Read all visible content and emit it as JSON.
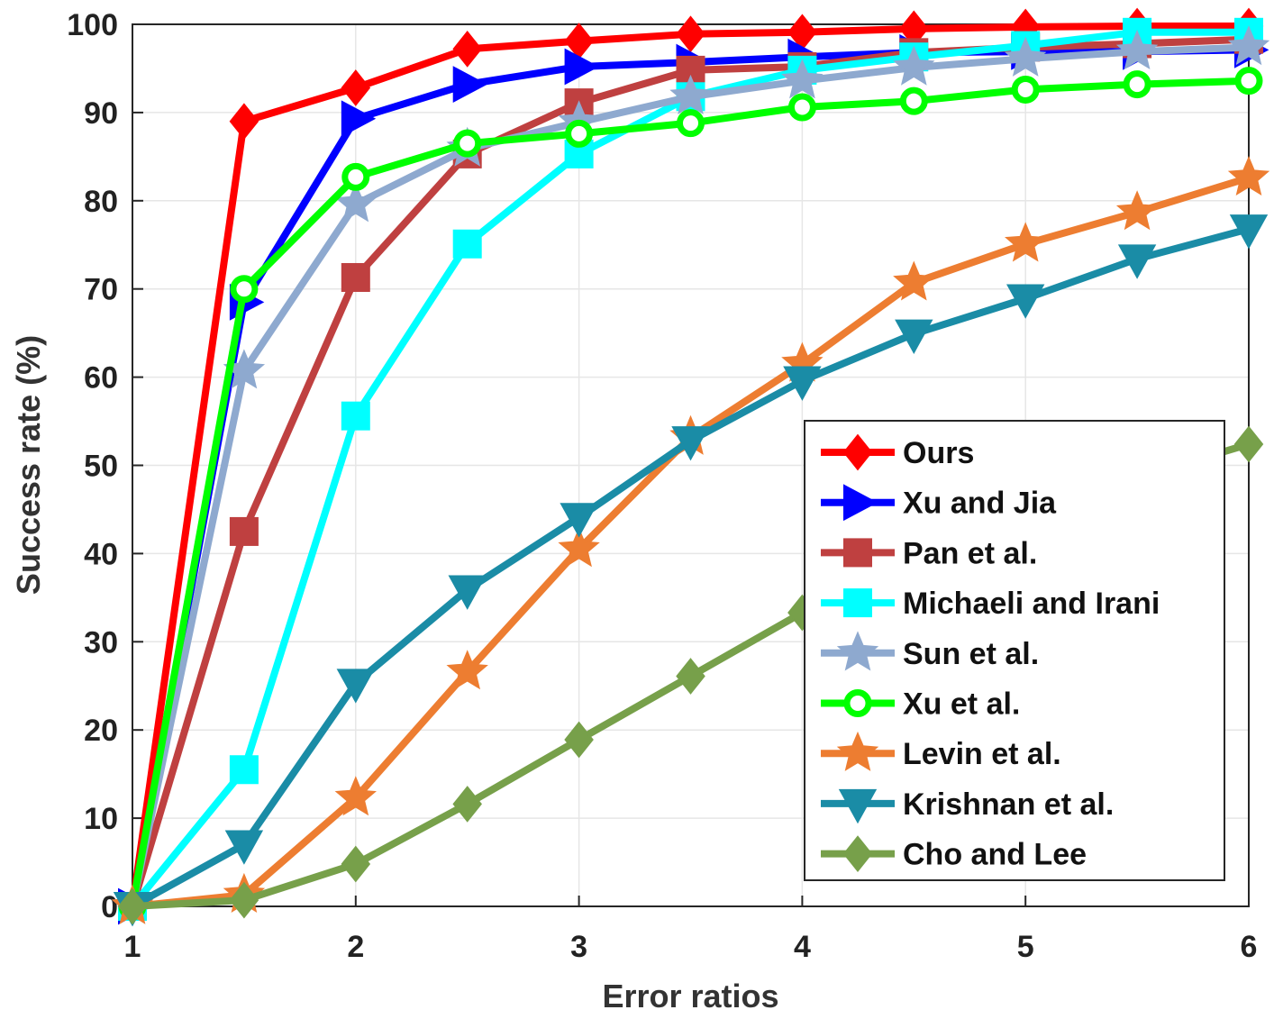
{
  "chart_data": {
    "type": "line",
    "title": "",
    "xlabel": "Error ratios",
    "ylabel": "Success rate (%)",
    "xlim": [
      1,
      6
    ],
    "ylim": [
      0,
      100
    ],
    "xticks": [
      1,
      2,
      3,
      4,
      5,
      6
    ],
    "yticks": [
      0,
      10,
      20,
      30,
      40,
      50,
      60,
      70,
      80,
      90,
      100
    ],
    "grid": true,
    "legend_position": "bottom-right",
    "x": [
      1,
      1.5,
      2,
      2.5,
      3,
      3.5,
      4,
      4.5,
      5,
      5.5,
      6
    ],
    "series": [
      {
        "name": "Ours",
        "color": "#ff0000",
        "marker": "diamond",
        "values": [
          0,
          89,
          92.8,
          97.2,
          98.1,
          98.9,
          99.1,
          99.5,
          99.7,
          99.8,
          99.8
        ]
      },
      {
        "name": "Xu and Jia",
        "color": "#0000ff",
        "marker": "triangle-right",
        "values": [
          0,
          68.5,
          89.3,
          93.2,
          95.2,
          95.7,
          96.3,
          96.8,
          96.9,
          96.9,
          97.1
        ]
      },
      {
        "name": "Pan et al.",
        "color": "#bf4040",
        "marker": "square",
        "values": [
          0,
          42.5,
          71.3,
          85.3,
          91.1,
          94.8,
          95.2,
          96.8,
          97.4,
          97.8,
          98.3
        ]
      },
      {
        "name": "Michaeli and Irani",
        "color": "#00ffff",
        "marker": "square",
        "values": [
          0,
          15.5,
          55.6,
          75.1,
          85.3,
          91.8,
          94.8,
          96.3,
          97.6,
          99.1,
          99.1
        ]
      },
      {
        "name": "Sun et al.",
        "color": "#8ea9cf",
        "marker": "star",
        "values": [
          0,
          60.7,
          79.6,
          85.9,
          88.9,
          91.8,
          93.6,
          95.1,
          96.1,
          96.9,
          97.4
        ]
      },
      {
        "name": "Xu et al.",
        "color": "#00ff00",
        "marker": "circle",
        "values": [
          0,
          70,
          82.7,
          86.5,
          87.6,
          88.8,
          90.6,
          91.3,
          92.6,
          93.2,
          93.6
        ]
      },
      {
        "name": "Levin et al.",
        "color": "#ed7d31",
        "marker": "star",
        "values": [
          0,
          1.3,
          12.3,
          26.6,
          40.5,
          53.2,
          61.5,
          70.7,
          75.1,
          78.7,
          82.6
        ]
      },
      {
        "name": "Krishnan et al.",
        "color": "#1a8ca6",
        "marker": "triangle-down",
        "values": [
          0,
          7,
          25.3,
          35.9,
          44.1,
          52.8,
          59.6,
          64.9,
          68.9,
          73.4,
          76.8
        ]
      },
      {
        "name": "Cho and Lee",
        "color": "#77a04a",
        "marker": "diamond",
        "values": [
          0,
          0.7,
          4.8,
          11.6,
          18.9,
          26.1,
          33.3,
          39.7,
          44.6,
          48.6,
          52.4
        ]
      }
    ]
  }
}
